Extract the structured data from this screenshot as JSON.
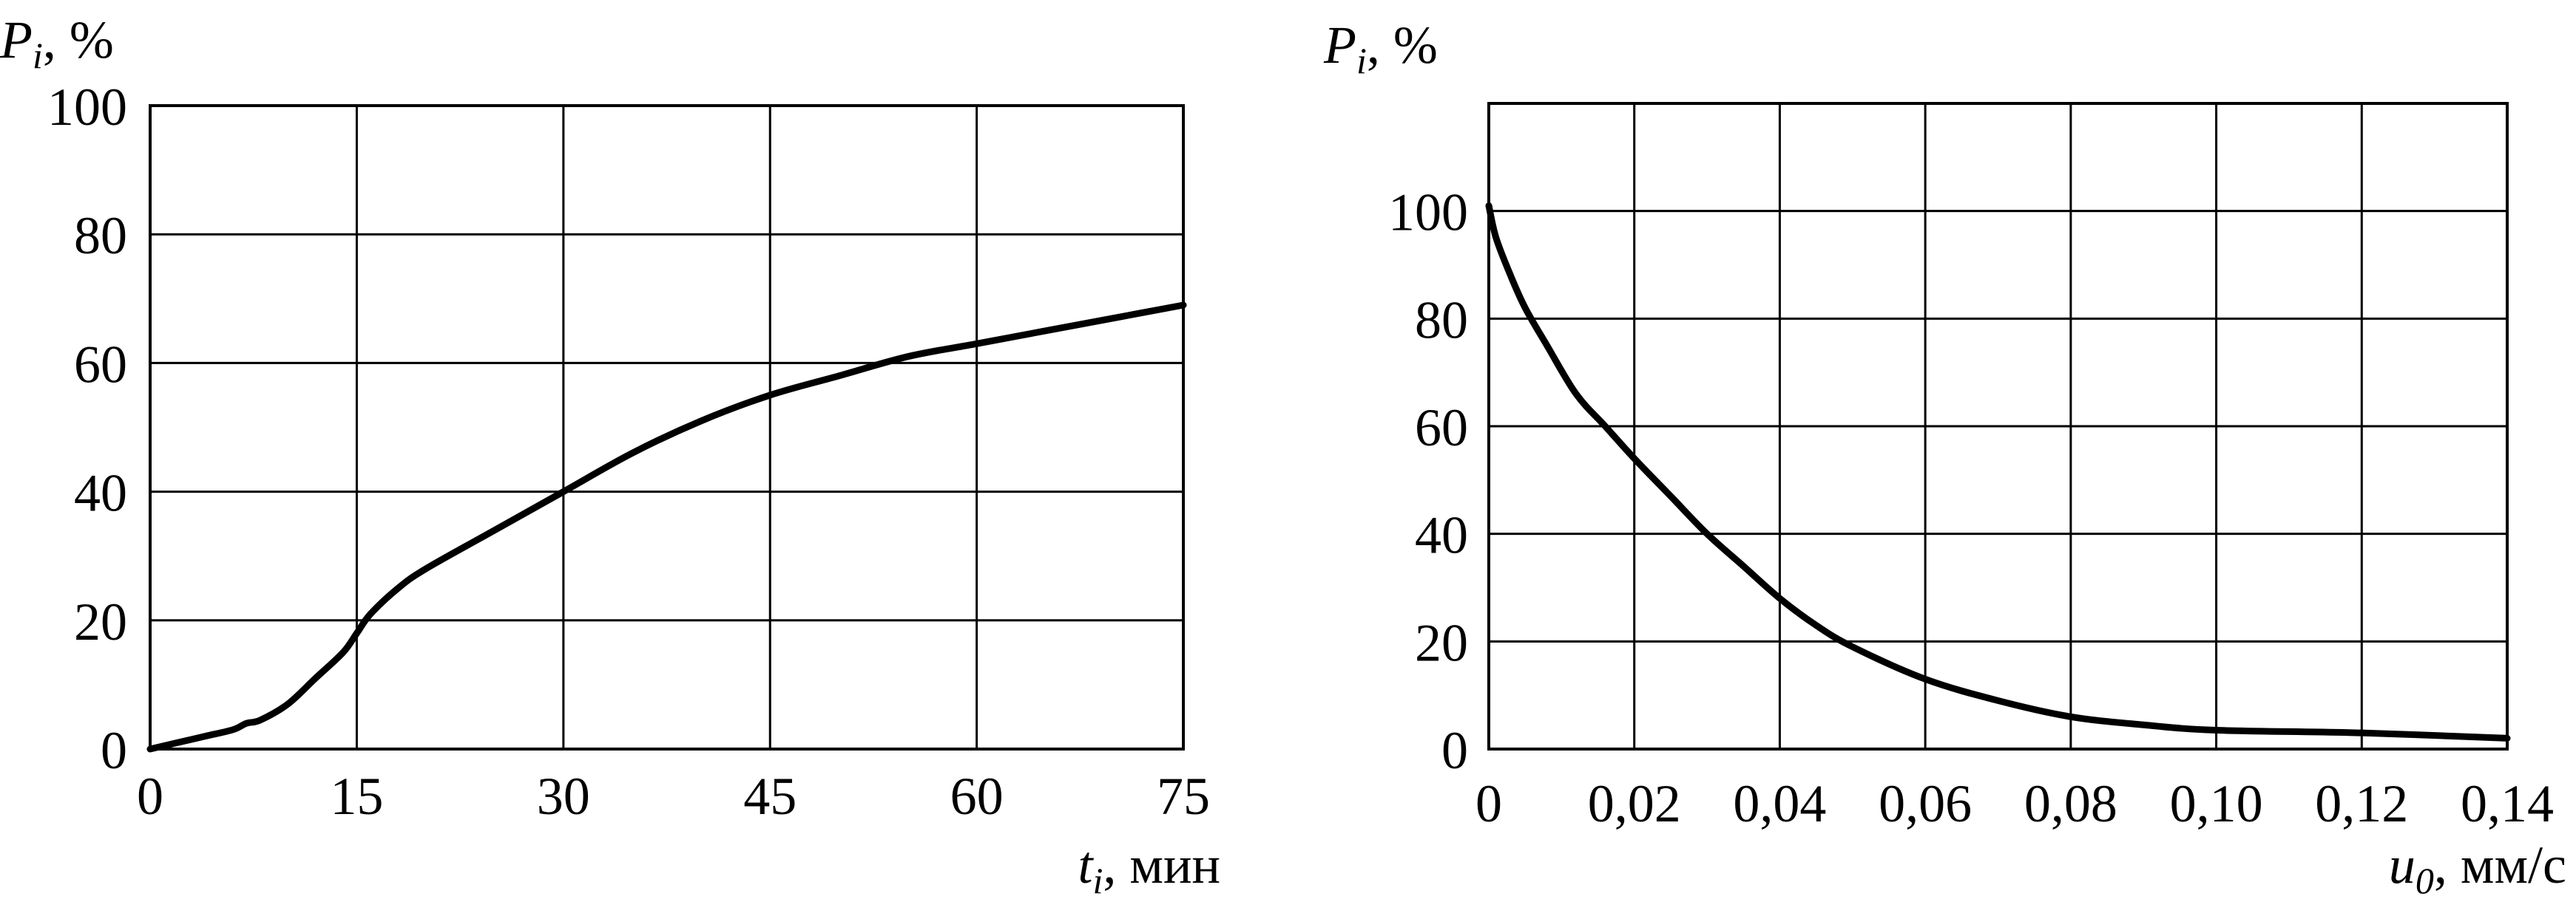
{
  "chart_data": [
    {
      "type": "line",
      "title": "",
      "ylabel": {
        "symbol": "P",
        "sub": "i",
        "unit": ", %"
      },
      "xlabel": {
        "symbol": "t",
        "sub": "i",
        "unit": ", мин"
      },
      "xlim": [
        0,
        75
      ],
      "ylim": [
        0,
        100
      ],
      "xticks": [
        0,
        15,
        30,
        45,
        60,
        75
      ],
      "xtick_labels": [
        "0",
        "15",
        "30",
        "45",
        "60",
        "75"
      ],
      "yticks": [
        0,
        20,
        40,
        60,
        80,
        100
      ],
      "ytick_labels": [
        "0",
        "20",
        "40",
        "60",
        "80",
        "100"
      ],
      "grid": true,
      "series": [
        {
          "x": [
            0,
            2,
            4,
            6,
            7,
            8,
            10,
            12,
            14,
            15,
            16,
            18,
            20,
            25,
            30,
            35,
            40,
            45,
            50,
            55,
            60,
            65,
            70,
            75
          ],
          "y": [
            0,
            1,
            2,
            3,
            4,
            4.5,
            7,
            11,
            15,
            18,
            21,
            25,
            28,
            34,
            40,
            46,
            51,
            55,
            58,
            61,
            63,
            65,
            67,
            69
          ]
        }
      ]
    },
    {
      "type": "line",
      "title": "",
      "ylabel": {
        "symbol": "P",
        "sub": "i",
        "unit": ", %"
      },
      "xlabel": {
        "symbol": "u",
        "sub": "0",
        "unit": ", мм/с"
      },
      "xlim": [
        0,
        0.14
      ],
      "ylim": [
        0,
        120
      ],
      "xticks": [
        0,
        0.02,
        0.04,
        0.06,
        0.08,
        0.1,
        0.12,
        0.14
      ],
      "xtick_labels": [
        "0",
        "0,02",
        "0,04",
        "0,06",
        "0,08",
        "0,10",
        "0,12",
        "0,14"
      ],
      "yticks": [
        0,
        20,
        40,
        60,
        80,
        100
      ],
      "ytick_labels": [
        "0",
        "20",
        "40",
        "60",
        "80",
        "100"
      ],
      "grid": true,
      "series": [
        {
          "x": [
            0,
            0.001,
            0.003,
            0.005,
            0.008,
            0.012,
            0.016,
            0.02,
            0.025,
            0.03,
            0.035,
            0.04,
            0.045,
            0.05,
            0.06,
            0.07,
            0.08,
            0.09,
            0.1,
            0.12,
            0.14
          ],
          "y": [
            101,
            95,
            88,
            82,
            75,
            66,
            60,
            54,
            47,
            40,
            34,
            28,
            23,
            19,
            13,
            9,
            6,
            4.5,
            3.5,
            3,
            2
          ]
        }
      ]
    }
  ]
}
